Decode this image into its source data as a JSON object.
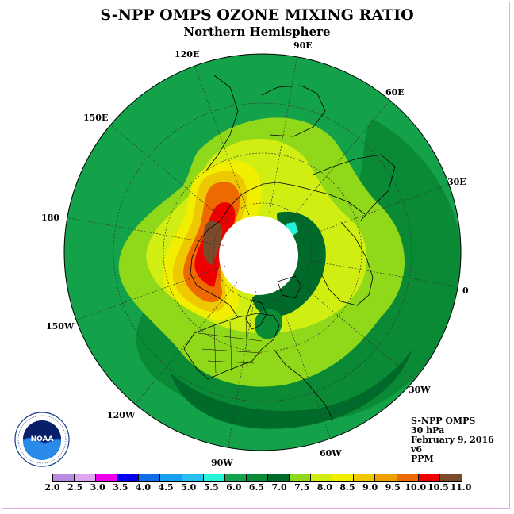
{
  "title": "S-NPP OMPS OZONE MIXING RATIO",
  "subtitle": "Northern Hemisphere",
  "longitude_labels": [
    "90E",
    "60E",
    "30E",
    "0",
    "30W",
    "60W",
    "90W",
    "120W",
    "150W",
    "180",
    "150E",
    "120E"
  ],
  "info": {
    "instrument": "S-NPP OMPS",
    "pressure": "30 hPa",
    "date": "February 9, 2016",
    "version": "v6",
    "units": "PPM"
  },
  "colorbar": {
    "labels": [
      "2.0",
      "2.5",
      "3.0",
      "3.5",
      "4.0",
      "4.5",
      "5.0",
      "5.5",
      "6.0",
      "6.5",
      "7.0",
      "7.5",
      "8.0",
      "8.5",
      "9.0",
      "9.5",
      "10.0",
      "10.5",
      "11.0"
    ],
    "colors": [
      "#b98be0",
      "#dda6ee",
      "#ee00ee",
      "#0000ee",
      "#0f6fe8",
      "#1aa0f0",
      "#28bef2",
      "#2af2d6",
      "#13a24a",
      "#0b8a36",
      "#006a2a",
      "#8fd81a",
      "#d0ee12",
      "#f2ee00",
      "#eec800",
      "#eea000",
      "#ee6a00",
      "#ee0000",
      "#7a4a2a"
    ]
  },
  "logo": {
    "text": "NOAA",
    "ring_text": "NATIONAL OCEANIC AND ATMOSPHERIC ADMINISTRATION · U.S. DEPARTMENT OF COMMERCE"
  }
}
